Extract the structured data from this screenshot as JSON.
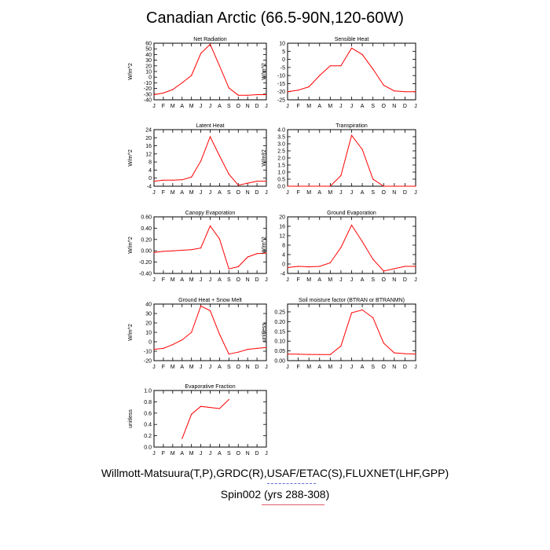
{
  "title": "Canadian Arctic (66.5-90N,120-60W)",
  "footer": {
    "line1": "Willmott-Matsuura(T,P),GRDC(R),USAF/ETAC(S),FLUXNET(LHF,GPP)",
    "line2": "Spin002 (yrs 288-308)"
  },
  "colors": {
    "series": "#ff0000",
    "axis": "#000000",
    "legend_line": "#e05a6a",
    "legend_dashes": "#5b6fd8"
  },
  "chart_data": [
    {
      "type": "line",
      "title": "Net Radiation",
      "ylabel": "W/m^2",
      "categories": [
        "J",
        "F",
        "M",
        "A",
        "M",
        "J",
        "J",
        "A",
        "S",
        "O",
        "N",
        "D",
        "J"
      ],
      "ylim": [
        -40,
        60
      ],
      "yticks": [
        "-40",
        "-30",
        "-20",
        "-10",
        "0",
        "10",
        "20",
        "30",
        "40",
        "50",
        "60"
      ],
      "series": [
        {
          "values": [
            -31,
            -28,
            -22,
            -10,
            3,
            42,
            58,
            20,
            -19,
            -32,
            -32,
            -31,
            -31
          ]
        }
      ]
    },
    {
      "type": "line",
      "title": "Sensible Heat",
      "ylabel": "W/m^2",
      "categories": [
        "J",
        "F",
        "M",
        "A",
        "M",
        "J",
        "J",
        "A",
        "S",
        "O",
        "N",
        "D",
        "J"
      ],
      "ylim": [
        -25,
        10
      ],
      "yticks": [
        "-25",
        "-20",
        "-15",
        "-10",
        "-5",
        "0",
        "5",
        "10"
      ],
      "series": [
        {
          "values": [
            -20,
            -19,
            -17,
            -10,
            -4,
            -4,
            7,
            3,
            -6,
            -16,
            -19.5,
            -20,
            -20
          ]
        }
      ]
    },
    {
      "type": "line",
      "title": "Latent Heat",
      "ylabel": "W/m^2",
      "categories": [
        "J",
        "F",
        "M",
        "A",
        "M",
        "J",
        "J",
        "A",
        "S",
        "O",
        "N",
        "D",
        "J"
      ],
      "ylim": [
        -4,
        24
      ],
      "yticks": [
        "-4",
        "0",
        "4",
        "8",
        "12",
        "16",
        "20",
        "24"
      ],
      "series": [
        {
          "values": [
            -1.5,
            -1,
            -1,
            -0.8,
            0.5,
            8.5,
            20.5,
            11,
            2,
            -3.5,
            -2.5,
            -1.5,
            -1.5
          ]
        }
      ]
    },
    {
      "type": "line",
      "title": "Transpiration",
      "ylabel": "W/m^2",
      "categories": [
        "J",
        "F",
        "M",
        "A",
        "M",
        "J",
        "J",
        "A",
        "S",
        "O",
        "N",
        "D",
        "J"
      ],
      "ylim": [
        0,
        4
      ],
      "yticks": [
        "0.0",
        "0.5",
        "1.0",
        "1.5",
        "2.0",
        "2.5",
        "3.0",
        "3.5",
        "4.0"
      ],
      "series": [
        {
          "values": [
            0,
            0,
            0,
            0,
            0,
            0.75,
            3.6,
            2.6,
            0.5,
            0,
            0,
            0,
            0
          ]
        }
      ]
    },
    {
      "type": "line",
      "title": "Canopy Evaporation",
      "ylabel": "W/m^2",
      "categories": [
        "J",
        "F",
        "M",
        "A",
        "M",
        "J",
        "J",
        "A",
        "S",
        "O",
        "N",
        "D",
        "J"
      ],
      "ylim": [
        -0.4,
        0.6
      ],
      "yticks": [
        "-0.40",
        "-0.20",
        "0.00",
        "0.20",
        "0.40",
        "0.60"
      ],
      "series": [
        {
          "values": [
            -0.03,
            -0.01,
            0.0,
            0.01,
            0.02,
            0.05,
            0.44,
            0.21,
            -0.32,
            -0.28,
            -0.11,
            -0.05,
            -0.04
          ]
        }
      ]
    },
    {
      "type": "line",
      "title": "Ground Evaporation",
      "ylabel": "W/m^2",
      "categories": [
        "J",
        "F",
        "M",
        "A",
        "M",
        "J",
        "J",
        "A",
        "S",
        "O",
        "N",
        "D",
        "J"
      ],
      "ylim": [
        -4,
        20
      ],
      "yticks": [
        "-4",
        "0",
        "4",
        "8",
        "12",
        "16",
        "20"
      ],
      "series": [
        {
          "values": [
            -1.5,
            -1,
            -1.2,
            -1,
            0.5,
            7,
            16.5,
            9.5,
            2,
            -3,
            -2,
            -1,
            -1
          ]
        }
      ]
    },
    {
      "type": "line",
      "title": "Ground Heat + Snow Melt",
      "ylabel": "W/m^2",
      "categories": [
        "J",
        "F",
        "M",
        "A",
        "M",
        "J",
        "J",
        "A",
        "S",
        "O",
        "N",
        "D",
        "J"
      ],
      "ylim": [
        -20,
        40
      ],
      "yticks": [
        "-20",
        "-10",
        "0",
        "10",
        "20",
        "30",
        "40"
      ],
      "series": [
        {
          "values": [
            -8,
            -7,
            -3,
            2,
            10,
            38,
            33,
            8,
            -13,
            -11,
            -8,
            -7,
            -6
          ]
        }
      ]
    },
    {
      "type": "line",
      "title": "Soil moisture factor (BTRAN or BTRANMN)",
      "ylabel": "unitless",
      "categories": [
        "J",
        "F",
        "M",
        "A",
        "M",
        "J",
        "J",
        "A",
        "S",
        "O",
        "N",
        "D",
        "J"
      ],
      "ylim": [
        0,
        0.29
      ],
      "yticks": [
        "0.00",
        "0.05",
        "0.10",
        "0.15",
        "0.20",
        "0.25"
      ],
      "series": [
        {
          "values": [
            0.034,
            0.033,
            0.032,
            0.031,
            0.031,
            0.075,
            0.245,
            0.26,
            0.22,
            0.09,
            0.04,
            0.036,
            0.034
          ]
        }
      ]
    },
    {
      "type": "line",
      "title": "Evaporative Fraction",
      "ylabel": "unitless",
      "categories": [
        "J",
        "F",
        "M",
        "A",
        "M",
        "J",
        "J",
        "A",
        "S",
        "O",
        "N",
        "D",
        "J"
      ],
      "ylim": [
        0,
        1
      ],
      "yticks": [
        "0.0",
        "0.2",
        "0.4",
        "0.6",
        "0.8",
        "1.0"
      ],
      "series": [
        {
          "values": [
            null,
            null,
            null,
            0.15,
            0.58,
            0.72,
            0.7,
            0.68,
            0.84,
            null,
            null,
            null,
            null
          ]
        }
      ]
    }
  ]
}
